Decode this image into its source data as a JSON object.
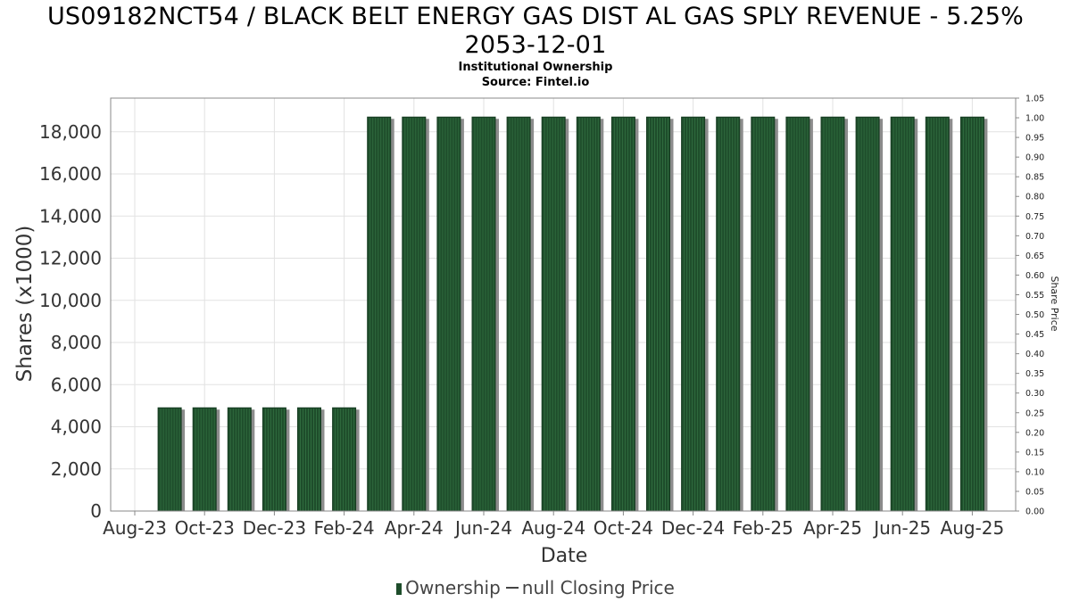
{
  "header": {
    "title_line1": "US09182NCT54 / BLACK BELT ENERGY GAS DIST AL GAS SPLY REVENUE - 5.25%",
    "title_line2": "2053-12-01",
    "subtitle_line1": "Institutional Ownership",
    "subtitle_line2": "Source: Fintel.io"
  },
  "legend": {
    "ownership_label": "Ownership",
    "price_label": "null Closing Price"
  },
  "colors": {
    "bar_fill": "#1e4d2b",
    "bar_stripe": "#2f6b3e",
    "bar_shadow": "#8c8c8c",
    "grid": "#e2e2e2",
    "axis_text": "#333333"
  },
  "chart_data": {
    "type": "bar",
    "title": "US09182NCT54 / BLACK BELT ENERGY GAS DIST AL GAS SPLY REVENUE - 5.25% 2053-12-01",
    "subtitle": "Institutional Ownership",
    "xlabel": "Date",
    "ylabel": "Shares (x1000)",
    "y2label": "Share Price",
    "ylim": [
      0,
      19600
    ],
    "y2lim": [
      0,
      1.05
    ],
    "grid": true,
    "legend_position": "bottom",
    "x_tick_labels": [
      "Aug-23",
      "Oct-23",
      "Dec-23",
      "Feb-24",
      "Apr-24",
      "Jun-24",
      "Aug-24",
      "Oct-24",
      "Dec-24",
      "Feb-25",
      "Apr-25",
      "Jun-25",
      "Aug-25"
    ],
    "y_ticks": [
      0,
      2000,
      4000,
      6000,
      8000,
      10000,
      12000,
      14000,
      16000,
      18000
    ],
    "y_tick_labels": [
      "0",
      "2,000",
      "4,000",
      "6,000",
      "8,000",
      "10,000",
      "12,000",
      "14,000",
      "16,000",
      "18,000"
    ],
    "y2_ticks": [
      0,
      0.05,
      0.1,
      0.15,
      0.2,
      0.25,
      0.3,
      0.35,
      0.4,
      0.45,
      0.5,
      0.55,
      0.6,
      0.65,
      0.7,
      0.75,
      0.8,
      0.85,
      0.9,
      0.95,
      1.0,
      1.05
    ],
    "y2_tick_labels": [
      "0.00",
      "0.05",
      "0.10",
      "0.15",
      "0.20",
      "0.25",
      "0.30",
      "0.35",
      "0.40",
      "0.45",
      "0.50",
      "0.55",
      "0.60",
      "0.65",
      "0.70",
      "0.75",
      "0.80",
      "0.85",
      "0.90",
      "0.95",
      "1.00",
      "1.05"
    ],
    "series": [
      {
        "name": "Ownership",
        "values": [
          4900,
          4900,
          4900,
          4900,
          4900,
          4900,
          18700,
          18700,
          18700,
          18700,
          18700,
          18700,
          18700,
          18700,
          18700,
          18700,
          18700,
          18700,
          18700,
          18700,
          18700,
          18700,
          18700,
          18700
        ]
      }
    ]
  }
}
